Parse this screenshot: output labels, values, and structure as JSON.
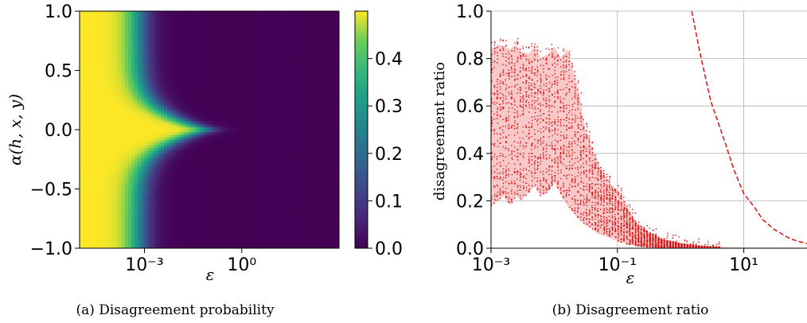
{
  "chart_data": [
    {
      "type": "heatmap",
      "caption": "(a) Disagreement probability",
      "xlabel": "ε",
      "ylabel": "α(h, x, y)",
      "x_scale": "log",
      "xlim": [
        1e-05,
        1000
      ],
      "ylim": [
        -1.0,
        1.0
      ],
      "x_ticks": [
        {
          "value": 0.001,
          "label": "10⁻³"
        },
        {
          "value": 1,
          "label": "10⁰"
        }
      ],
      "y_ticks": [
        {
          "value": 1.0,
          "label": "1.0"
        },
        {
          "value": 0.5,
          "label": "0.5"
        },
        {
          "value": 0.0,
          "label": "0.0"
        },
        {
          "value": -0.5,
          "label": "−0.5"
        },
        {
          "value": -1.0,
          "label": "−1.0"
        }
      ],
      "colorbar": {
        "colormap": "viridis",
        "range": [
          0.0,
          0.5
        ],
        "ticks": [
          {
            "value": 0.4,
            "label": "0.4"
          },
          {
            "value": 0.3,
            "label": "0.3"
          },
          {
            "value": 0.2,
            "label": "0.2"
          },
          {
            "value": 0.1,
            "label": "0.1"
          },
          {
            "value": 0.0,
            "label": "0.0"
          }
        ]
      },
      "colors": {
        "low": "#440154",
        "mid": "#21918c",
        "high": "#fde725"
      }
    },
    {
      "type": "scatter",
      "caption": "(b) Disagreement ratio",
      "xlabel": "ε",
      "ylabel": "disagreement ratio",
      "x_scale": "log",
      "xlim": [
        0.001,
        100
      ],
      "ylim": [
        0.0,
        1.0
      ],
      "grid": true,
      "x_ticks": [
        {
          "value": 0.001,
          "label": "10⁻³"
        },
        {
          "value": 0.1,
          "label": "10⁻¹"
        },
        {
          "value": 10,
          "label": "10¹"
        }
      ],
      "y_ticks": [
        {
          "value": 0.0,
          "label": "0.0"
        },
        {
          "value": 0.2,
          "label": "0.2"
        },
        {
          "value": 0.4,
          "label": "0.4"
        },
        {
          "value": 0.6,
          "label": "0.6"
        },
        {
          "value": 0.8,
          "label": "0.8"
        },
        {
          "value": 1.0,
          "label": "1.0"
        }
      ],
      "band": {
        "x": [
          0.001,
          0.0013,
          0.0016,
          0.002,
          0.0025,
          0.003,
          0.004,
          0.005,
          0.006,
          0.008,
          0.01,
          0.013,
          0.016,
          0.02,
          0.025,
          0.03,
          0.04,
          0.05,
          0.065,
          0.08,
          0.1,
          0.13,
          0.16,
          0.2,
          0.3,
          0.5,
          1,
          2,
          5,
          10,
          100
        ],
        "upper": [
          0.84,
          0.86,
          0.85,
          0.84,
          0.86,
          0.83,
          0.82,
          0.86,
          0.8,
          0.82,
          0.85,
          0.8,
          0.84,
          0.75,
          0.65,
          0.52,
          0.42,
          0.36,
          0.3,
          0.27,
          0.24,
          0.2,
          0.15,
          0.11,
          0.07,
          0.04,
          0.02,
          0.01,
          0.005,
          0.003,
          0.002
        ],
        "lower": [
          0.18,
          0.2,
          0.22,
          0.18,
          0.22,
          0.2,
          0.24,
          0.26,
          0.22,
          0.24,
          0.28,
          0.22,
          0.18,
          0.15,
          0.12,
          0.1,
          0.08,
          0.06,
          0.05,
          0.04,
          0.03,
          0.02,
          0.015,
          0.01,
          0.005,
          0.002,
          0.001,
          0.0,
          0.0,
          0.0,
          0.0
        ],
        "color": "#f9c9c9"
      },
      "dashed_line": {
        "x": [
          1.5,
          2,
          3,
          5,
          7,
          10,
          15,
          20,
          30,
          50,
          70,
          100
        ],
        "y": [
          1.0,
          0.83,
          0.62,
          0.45,
          0.33,
          0.23,
          0.17,
          0.12,
          0.08,
          0.045,
          0.03,
          0.02
        ],
        "color": "#e01010"
      },
      "point_color": "#e01010"
    }
  ]
}
